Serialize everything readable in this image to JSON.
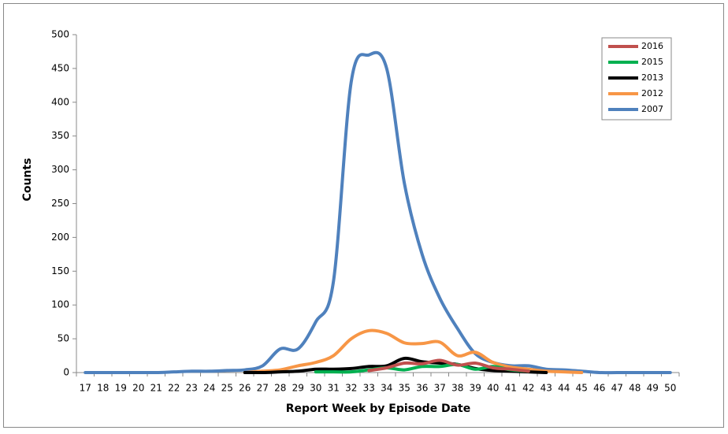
{
  "chart_data": {
    "type": "line",
    "x_label": "Report Week by Episode Date",
    "y_label": "Counts",
    "categories": [
      17,
      18,
      19,
      20,
      21,
      22,
      23,
      24,
      25,
      26,
      27,
      28,
      29,
      30,
      31,
      32,
      33,
      34,
      35,
      36,
      37,
      38,
      39,
      40,
      41,
      42,
      43,
      44,
      45,
      46,
      47,
      48,
      49,
      50
    ],
    "series": [
      {
        "name": "2016",
        "color": "#c0504d",
        "values": [
          null,
          null,
          null,
          null,
          null,
          null,
          null,
          null,
          null,
          null,
          null,
          null,
          null,
          null,
          null,
          null,
          3,
          7,
          14,
          13,
          18,
          11,
          14,
          7,
          5,
          2,
          null,
          null,
          null,
          null,
          null,
          null,
          null,
          null
        ]
      },
      {
        "name": "2015",
        "color": "#00b050",
        "values": [
          null,
          null,
          null,
          null,
          null,
          null,
          null,
          null,
          null,
          null,
          null,
          null,
          null,
          1,
          1,
          1,
          4,
          7,
          4,
          9,
          9,
          12,
          5,
          9,
          4,
          2,
          null,
          null,
          null,
          null,
          null,
          null,
          null,
          null
        ]
      },
      {
        "name": "2013",
        "color": "#000000",
        "values": [
          null,
          null,
          null,
          null,
          null,
          null,
          null,
          null,
          null,
          0,
          0,
          1,
          2,
          5,
          5,
          6,
          9,
          10,
          21,
          16,
          14,
          12,
          6,
          3,
          2,
          1,
          0,
          null,
          null,
          null,
          null,
          null,
          null,
          null
        ]
      },
      {
        "name": "2012",
        "color": "#f79646",
        "values": [
          null,
          null,
          null,
          null,
          null,
          null,
          null,
          null,
          null,
          0,
          2,
          4,
          10,
          15,
          25,
          50,
          62,
          58,
          44,
          43,
          45,
          25,
          30,
          15,
          8,
          5,
          2,
          1,
          0,
          null,
          null,
          null,
          null,
          null
        ]
      },
      {
        "name": "2007",
        "color": "#4f81bd",
        "values": [
          0,
          0,
          0,
          0,
          0,
          1,
          2,
          2,
          3,
          4,
          10,
          35,
          35,
          75,
          135,
          430,
          470,
          450,
          280,
          175,
          110,
          65,
          28,
          15,
          10,
          10,
          5,
          4,
          2,
          0,
          0,
          0,
          0,
          0
        ]
      }
    ],
    "ylim": [
      0,
      500
    ],
    "yticks": [
      0,
      50,
      100,
      150,
      200,
      250,
      300,
      350,
      400,
      450,
      500
    ],
    "grid": false,
    "legend": "top-right"
  }
}
